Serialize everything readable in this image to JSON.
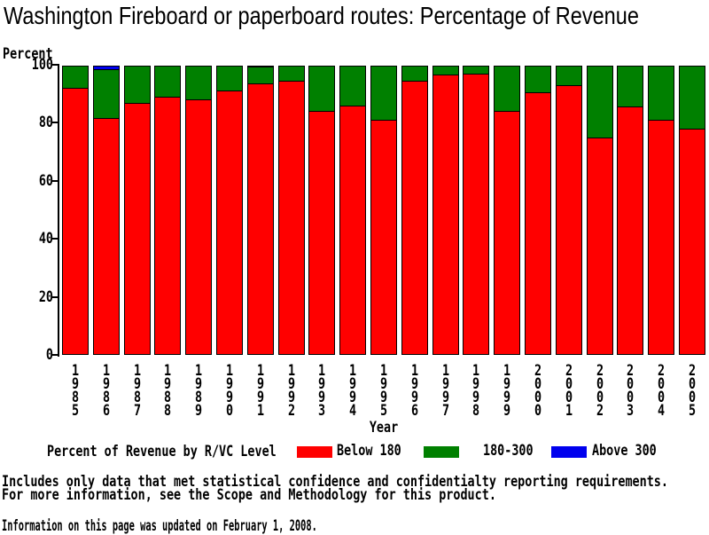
{
  "page": {
    "notes": [
      "Includes only data that met statistical confidence and confidentialty reporting requirements.",
      "For more information, see the Scope and Methodology for this product."
    ],
    "updated": "Information on this page was updated on February 1, 2008."
  },
  "chart_data": {
    "type": "bar",
    "stacked": true,
    "title": "Washington Fireboard or paperboard routes: Percentage of Revenue",
    "ylabel": "Percent",
    "xlabel": "Year",
    "legend_title": "Percent of Revenue by R/VC Level",
    "legend_position": "bottom",
    "grid": false,
    "ylim": [
      0,
      100
    ],
    "yticks": [
      0,
      20,
      40,
      60,
      80,
      100
    ],
    "categories": [
      "1985",
      "1986",
      "1987",
      "1988",
      "1989",
      "1990",
      "1991",
      "1992",
      "1993",
      "1994",
      "1995",
      "1996",
      "1997",
      "1998",
      "1999",
      "2000",
      "2001",
      "2002",
      "2003",
      "2004",
      "2005"
    ],
    "series": [
      {
        "name": "Below 180",
        "color": "#ff0000",
        "values": [
          92,
          81.5,
          87,
          89,
          88,
          91,
          93.5,
          94.5,
          84,
          86,
          81,
          94.5,
          96.5,
          97,
          84,
          90.5,
          93,
          75,
          85.5,
          81,
          78
        ]
      },
      {
        "name": "180-300",
        "color": "#008000",
        "values": [
          8,
          17,
          13,
          11,
          12,
          9,
          6,
          5.5,
          16,
          14,
          19,
          5.5,
          3.5,
          3,
          16,
          9.5,
          7,
          25,
          14.5,
          19,
          22
        ]
      },
      {
        "name": "Above 300",
        "color": "#0000ee",
        "values": [
          0,
          1.5,
          0,
          0,
          0,
          0,
          0.5,
          0,
          0,
          0,
          0,
          0,
          0,
          0,
          0,
          0,
          0,
          0,
          0,
          0,
          0
        ]
      }
    ]
  }
}
